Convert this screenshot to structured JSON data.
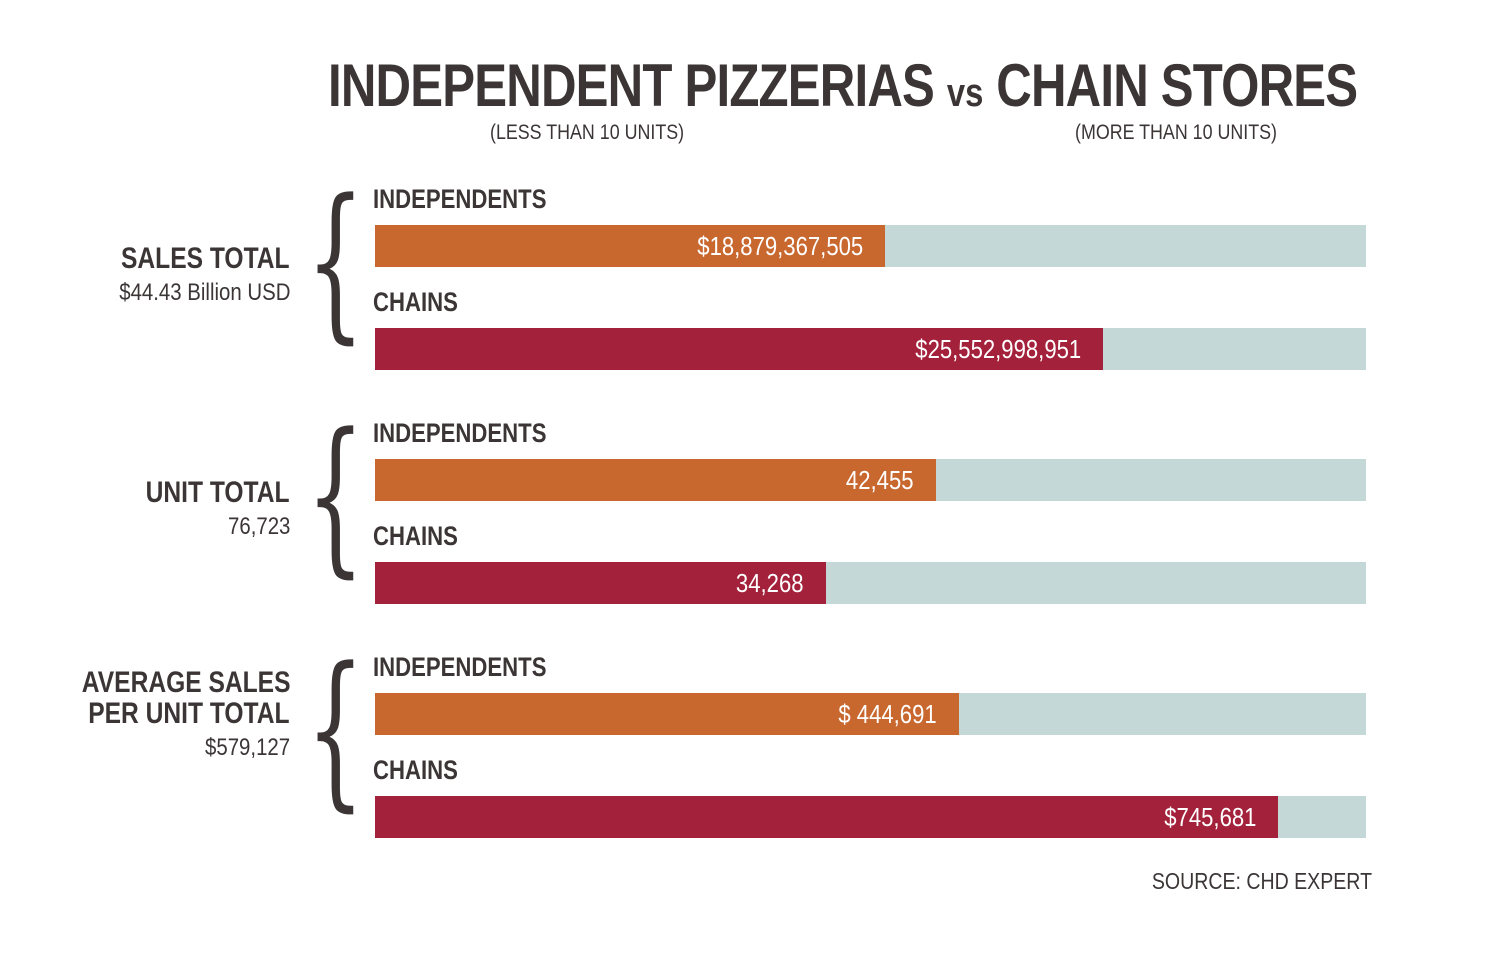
{
  "chart_data": {
    "type": "bar",
    "title": "INDEPENDENT PIZZERIAS vs CHAIN STORES",
    "title_parts": {
      "left": "INDEPENDENT PIZZERIAS",
      "vs": "vs",
      "right": "CHAIN STORES"
    },
    "subtitles": {
      "independents": "(LESS THAN 10 UNITS)",
      "chains": "(MORE THAN 10 UNITS)"
    },
    "source": "SOURCE: CHD EXPERT",
    "colors": {
      "independents": "#c8672e",
      "chains": "#a3213a",
      "track": "#c3d8d7",
      "text": "#3b3536"
    },
    "groups": [
      {
        "label_lines": [
          "SALES TOTAL"
        ],
        "total": "$44.43 Billion USD",
        "bars": [
          {
            "label": "INDEPENDENTS",
            "series": "independents",
            "value": 18879367505,
            "display": "$18,879,367,505",
            "fraction": 0.515
          },
          {
            "label": "CHAINS",
            "series": "chains",
            "value": 25552998951,
            "display": "$25,552,998,951",
            "fraction": 0.735
          }
        ]
      },
      {
        "label_lines": [
          "UNIT TOTAL"
        ],
        "total": "76,723",
        "bars": [
          {
            "label": "INDEPENDENTS",
            "series": "independents",
            "value": 42455,
            "display": "42,455",
            "fraction": 0.566
          },
          {
            "label": "CHAINS",
            "series": "chains",
            "value": 34268,
            "display": "34,268",
            "fraction": 0.455
          }
        ]
      },
      {
        "label_lines": [
          "AVERAGE SALES",
          "PER UNIT TOTAL"
        ],
        "total": "$579,127",
        "bars": [
          {
            "label": "INDEPENDENTS",
            "series": "independents",
            "value": 444691,
            "display": "$ 444,691",
            "fraction": 0.589
          },
          {
            "label": "CHAINS",
            "series": "chains",
            "value": 745681,
            "display": "$745,681",
            "fraction": 0.911
          }
        ]
      }
    ]
  }
}
